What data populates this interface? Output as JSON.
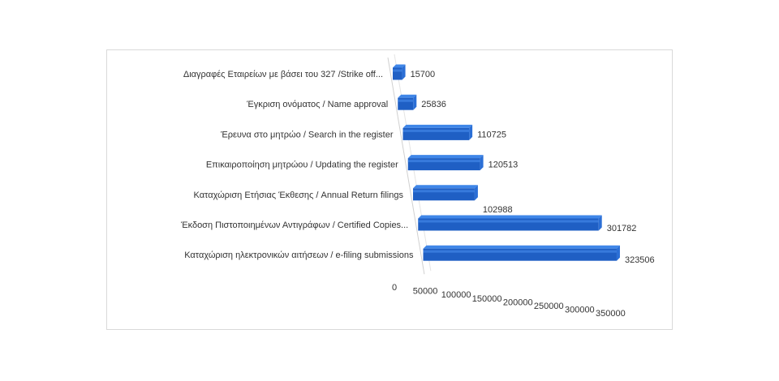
{
  "chart_data": {
    "type": "bar",
    "orientation": "horizontal",
    "style": "3d",
    "categories": [
      "Διαγραφές Εταιρείων  με  βάσει του 327 /Strike off...",
      "Έγκριση ονόματος / Name approval",
      "Έρευνα στο μητρώο / Search in the register",
      "Επικαιροποίηση μητρώου / Updating the register",
      "Καταχώριση Ετήσιας Έκθεσης / Annual Return filings",
      "Έκδοση Πιστοποιημένων Αντιγράφων  / Certified Copies...",
      "Καταχώριση ηλεκτρονικών αιτήσεων / e-filing submissions"
    ],
    "values": [
      15700,
      25836,
      110725,
      120513,
      102988,
      301782,
      323506
    ],
    "value_labels": [
      "15700",
      "25836",
      "110725",
      "120513",
      "102988",
      "301782",
      "323506"
    ],
    "x_ticks": [
      "0",
      "50000",
      "100000",
      "150000",
      "200000",
      "250000",
      "300000",
      "350000"
    ],
    "xlim": [
      0,
      350000
    ],
    "grid": false,
    "legend": "none",
    "colors": {
      "bar_front": "#1f5fc4",
      "bar_top": "#3f86e8",
      "bar_end": "#2b6fd6",
      "axis": "#d0d0d0"
    }
  }
}
